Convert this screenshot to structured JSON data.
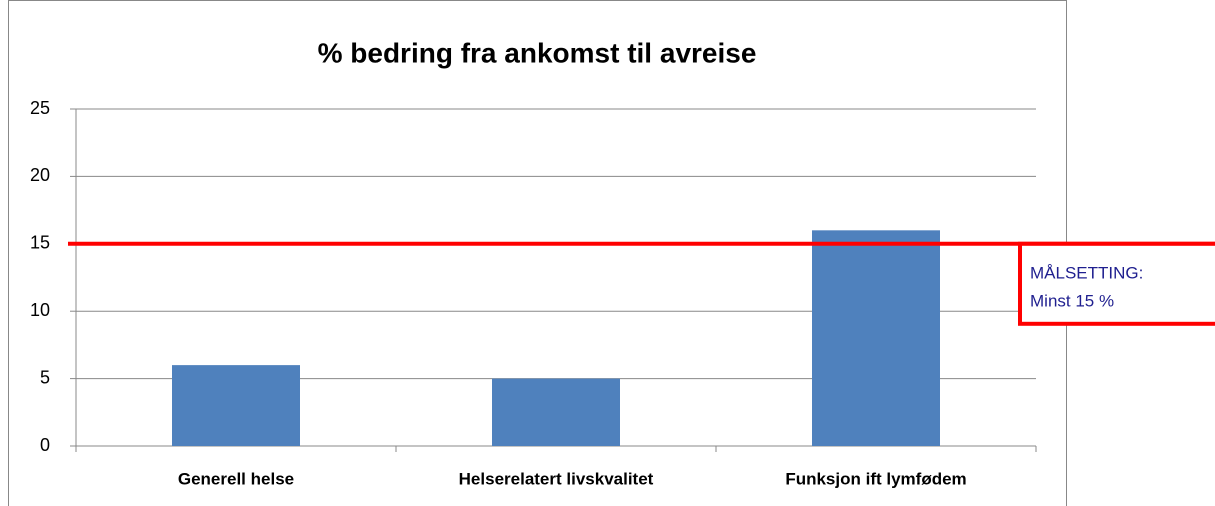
{
  "chart_data": {
    "type": "bar",
    "title": "% bedring fra ankomst til avreise",
    "categories": [
      "Generell helse",
      "Helserelatert livskvalitet",
      "Funksjon ift lymfødem"
    ],
    "values": [
      6,
      5,
      16
    ],
    "color": "#4f81bd",
    "ylim": [
      0,
      25
    ],
    "yticks": [
      0,
      5,
      10,
      15,
      20,
      25
    ],
    "grid": true,
    "target": 15,
    "target_color": "#ff0000",
    "annotation": [
      "MÅLSETTING:",
      "Minst 15 %"
    ]
  }
}
